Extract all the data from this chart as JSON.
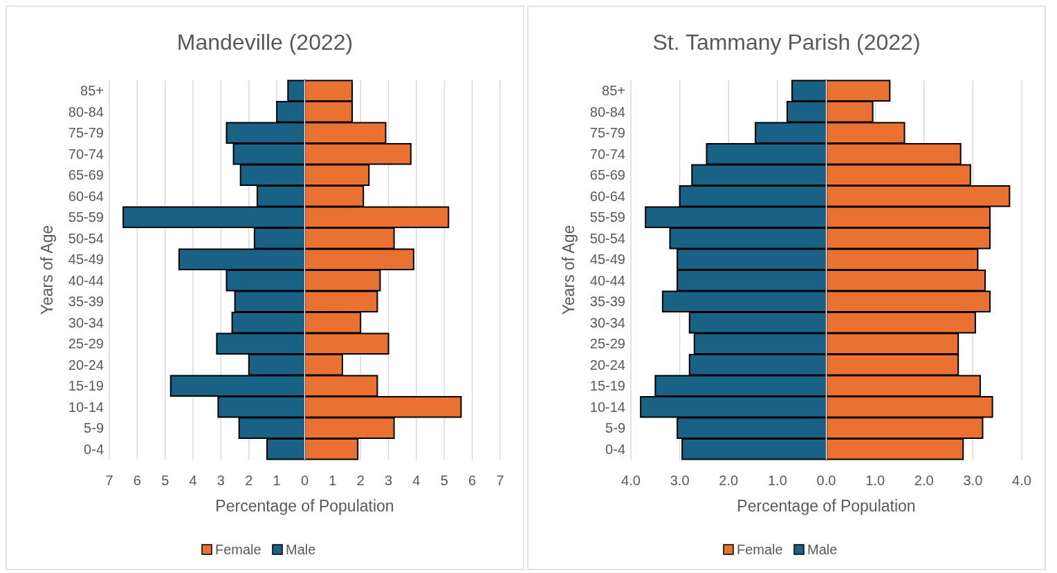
{
  "chart_data": [
    {
      "type": "bar",
      "orientation": "horizontal",
      "title": "Mandeville (2022)",
      "xlabel": "Percentage of Population",
      "ylabel": "Years of Age",
      "categories": [
        "85+",
        "80-84",
        "75-79",
        "70-74",
        "65-69",
        "60-64",
        "55-59",
        "50-54",
        "45-49",
        "40-44",
        "35-39",
        "30-34",
        "25-29",
        "20-24",
        "15-19",
        "10-14",
        "5-9",
        "0-4"
      ],
      "series": [
        {
          "name": "Female",
          "color": "#e97132",
          "values": [
            1.7,
            1.7,
            2.9,
            3.8,
            2.3,
            2.1,
            5.15,
            3.2,
            3.9,
            2.7,
            2.6,
            2.0,
            3.0,
            1.35,
            2.6,
            5.6,
            3.2,
            1.9
          ]
        },
        {
          "name": "Male",
          "color": "#196185",
          "values": [
            -0.6,
            -1.0,
            -2.8,
            -2.55,
            -2.3,
            -1.7,
            -6.5,
            -1.8,
            -4.5,
            -2.8,
            -2.5,
            -2.6,
            -3.15,
            -2.0,
            -4.8,
            -3.1,
            -2.35,
            -1.35
          ]
        }
      ],
      "stacked": true,
      "xlim": [
        -7,
        7
      ],
      "xticks": [
        {
          "value": -7,
          "label": "7"
        },
        {
          "value": -6,
          "label": "6"
        },
        {
          "value": -5,
          "label": "5"
        },
        {
          "value": -4,
          "label": "4"
        },
        {
          "value": -3,
          "label": "3"
        },
        {
          "value": -2,
          "label": "2"
        },
        {
          "value": -1,
          "label": "1"
        },
        0,
        1,
        2,
        3,
        4,
        5,
        6,
        7
      ],
      "grid": "x",
      "legend": "bottom"
    },
    {
      "type": "bar",
      "orientation": "horizontal",
      "title": "St. Tammany Parish (2022)",
      "xlabel": "Percentage of Population",
      "ylabel": "Years of Age",
      "categories": [
        "85+",
        "80-84",
        "75-79",
        "70-74",
        "65-69",
        "60-64",
        "55-59",
        "50-54",
        "45-49",
        "40-44",
        "35-39",
        "30-34",
        "25-29",
        "20-24",
        "15-19",
        "10-14",
        "5-9",
        "0-4"
      ],
      "series": [
        {
          "name": "Female",
          "color": "#e97132",
          "values": [
            1.3,
            0.95,
            1.6,
            2.75,
            2.95,
            3.75,
            3.35,
            3.35,
            3.1,
            3.25,
            3.35,
            3.05,
            2.7,
            2.7,
            3.15,
            3.4,
            3.2,
            2.8
          ]
        },
        {
          "name": "Male",
          "color": "#196185",
          "values": [
            -0.7,
            -0.8,
            -1.45,
            -2.45,
            -2.75,
            -3.0,
            -3.7,
            -3.2,
            -3.05,
            -3.05,
            -3.35,
            -2.8,
            -2.7,
            -2.8,
            -3.5,
            -3.8,
            -3.05,
            -2.95
          ]
        }
      ],
      "stacked": true,
      "xlim": [
        -4,
        4
      ],
      "xticks": [
        {
          "value": -4,
          "label": "4.0"
        },
        {
          "value": -3,
          "label": "3.0"
        },
        {
          "value": -2,
          "label": "2.0"
        },
        {
          "value": -1,
          "label": "1.0"
        },
        {
          "value": 0,
          "label": "0.0"
        },
        {
          "value": 1,
          "label": "1.0"
        },
        {
          "value": 2,
          "label": "2.0"
        },
        {
          "value": 3,
          "label": "3.0"
        },
        {
          "value": 4,
          "label": "4.0"
        }
      ],
      "grid": "x",
      "legend": "bottom"
    }
  ]
}
